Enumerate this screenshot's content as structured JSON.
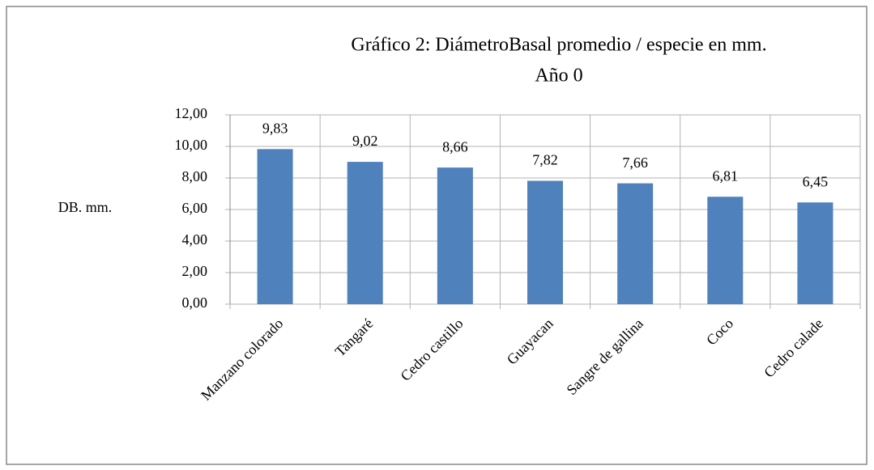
{
  "chart_data": {
    "type": "bar",
    "title": "Gráfico 2: DiámetroBasal promedio / especie en mm.",
    "subtitle": "Año 0",
    "y_label": "DB. mm.",
    "categories": [
      "Manzano colorado",
      "Tangaré",
      "Cedro castillo",
      "Guayacan",
      "Sangre de gallina",
      "Coco",
      "Cedro calade"
    ],
    "values": [
      9.83,
      9.02,
      8.66,
      7.82,
      7.66,
      6.81,
      6.45
    ],
    "value_labels": [
      "9,83",
      "9,02",
      "8,66",
      "7,82",
      "7,66",
      "6,81",
      "6,45"
    ],
    "color": "#4f81bd",
    "ylim": [
      0,
      12
    ],
    "yticks": [
      {
        "value": 0,
        "label": "0,00"
      },
      {
        "value": 2,
        "label": "2,00"
      },
      {
        "value": 4,
        "label": "4,00"
      },
      {
        "value": 6,
        "label": "6,00"
      },
      {
        "value": 8,
        "label": "8,00"
      },
      {
        "value": 10,
        "label": "10,00"
      },
      {
        "value": 12,
        "label": "12,00"
      }
    ],
    "grid": true
  }
}
